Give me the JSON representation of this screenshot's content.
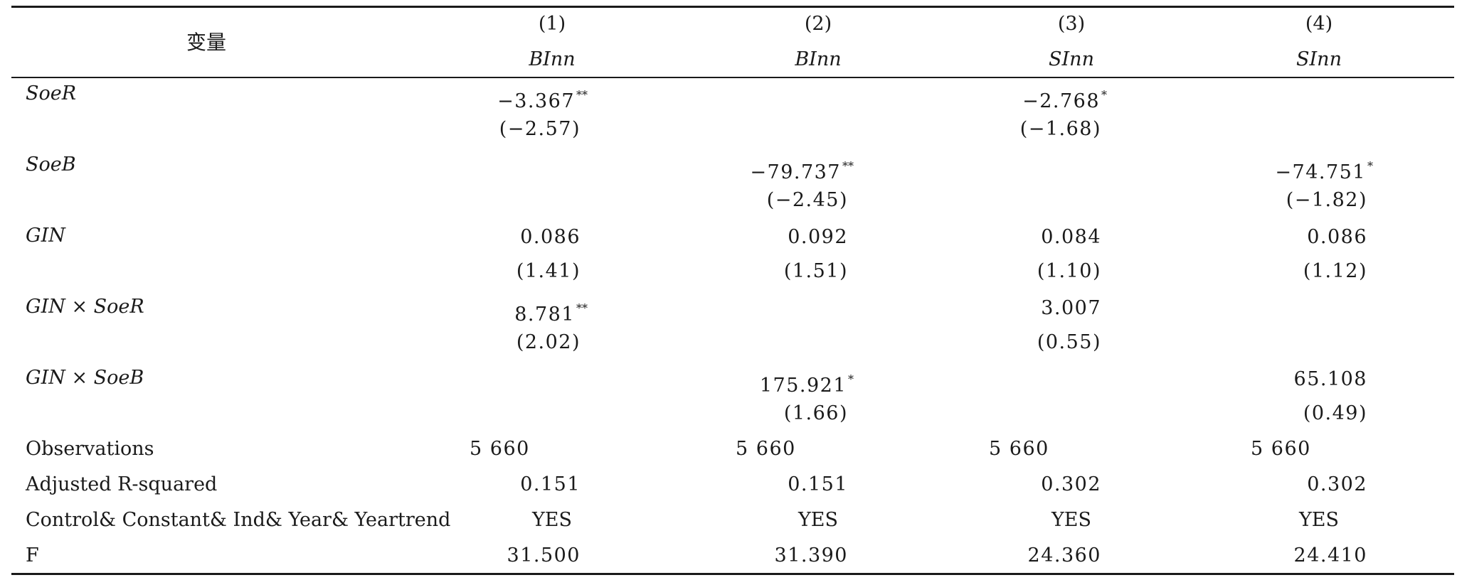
{
  "header": {
    "variable_label": "变量",
    "columns": [
      {
        "number": "(1)",
        "name": "BInn"
      },
      {
        "number": "(2)",
        "name": "BInn"
      },
      {
        "number": "(3)",
        "name": "SInn"
      },
      {
        "number": "(4)",
        "name": "SInn"
      }
    ]
  },
  "rows": {
    "soer": {
      "label": "SoeR",
      "c1": {
        "coef": "−3.367",
        "stars": "**",
        "t": "(−2.57)"
      },
      "c3": {
        "coef": "−2.768",
        "stars": "*",
        "t": "(−1.68)"
      }
    },
    "soeb": {
      "label": "SoeB",
      "c2": {
        "coef": "−79.737",
        "stars": "**",
        "t": "(−2.45)"
      },
      "c4": {
        "coef": "−74.751",
        "stars": "*",
        "t": "(−1.82)"
      }
    },
    "gin": {
      "label": "GIN",
      "c1": {
        "coef": "0.086",
        "t": "(1.41)"
      },
      "c2": {
        "coef": "0.092",
        "t": "(1.51)"
      },
      "c3": {
        "coef": "0.084",
        "t": "(1.10)"
      },
      "c4": {
        "coef": "0.086",
        "t": "(1.12)"
      }
    },
    "gin_soer": {
      "label": "GIN × SoeR",
      "c1": {
        "coef": "8.781",
        "stars": "**",
        "t": "(2.02)"
      },
      "c3": {
        "coef": "3.007",
        "t": "(0.55)"
      }
    },
    "gin_soeb": {
      "label": "GIN × SoeB",
      "c2": {
        "coef": "175.921",
        "stars": "*",
        "t": "(1.66)"
      },
      "c4": {
        "coef": "65.108",
        "t": "(0.49)"
      }
    },
    "observations": {
      "label": "Observations",
      "values": [
        "5 660",
        "5 660",
        "5 660",
        "5 660"
      ]
    },
    "adj_r2": {
      "label": "Adjusted R-squared",
      "values": [
        "0.151",
        "0.151",
        "0.302",
        "0.302"
      ]
    },
    "controls": {
      "label": "Control& Constant& Ind& Year& Yeartrend",
      "values": [
        "YES",
        "YES",
        "YES",
        "YES"
      ]
    },
    "f": {
      "label": "F",
      "values": [
        "31.500",
        "31.390",
        "24.360",
        "24.410"
      ]
    }
  }
}
